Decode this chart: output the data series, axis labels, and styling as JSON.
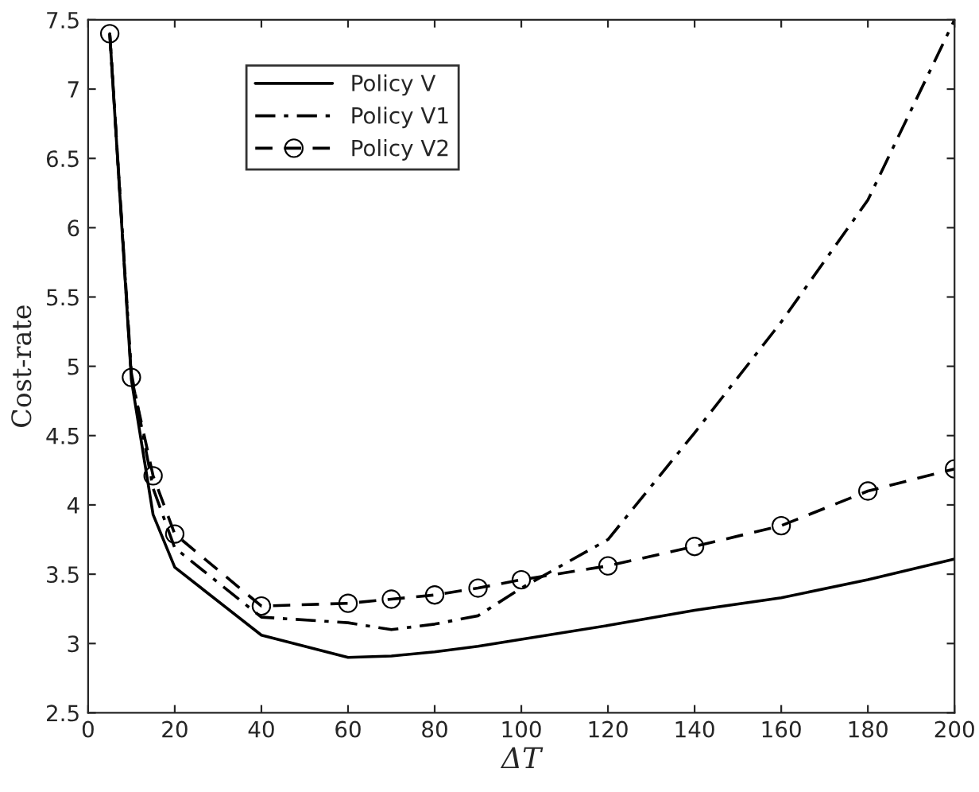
{
  "chart_data": {
    "type": "line",
    "xlabel": "ΔT",
    "ylabel": "Cost-rate",
    "x": [
      5,
      10,
      15,
      20,
      40,
      60,
      70,
      80,
      90,
      100,
      120,
      140,
      160,
      180,
      200
    ],
    "series": [
      {
        "name": "Policy V",
        "color": "#000000",
        "line_style": "solid",
        "marker": "none",
        "values": [
          7.4,
          4.9,
          3.93,
          3.55,
          3.06,
          2.9,
          2.91,
          2.94,
          2.98,
          3.03,
          3.13,
          3.24,
          3.33,
          3.46,
          3.61
        ]
      },
      {
        "name": "Policy V1",
        "color": "#000000",
        "line_style": "dashdot",
        "marker": "none",
        "values": [
          7.4,
          4.95,
          4.12,
          3.69,
          3.19,
          3.15,
          3.1,
          3.14,
          3.2,
          3.4,
          3.75,
          4.52,
          5.32,
          6.2,
          7.5
        ]
      },
      {
        "name": "Policy V2",
        "color": "#000000",
        "line_style": "dashed",
        "marker": "circle",
        "values": [
          7.4,
          4.92,
          4.21,
          3.79,
          3.27,
          3.29,
          3.32,
          3.35,
          3.4,
          3.46,
          3.56,
          3.7,
          3.85,
          4.1,
          4.26
        ]
      }
    ],
    "xlim": [
      0,
      200
    ],
    "xticks": [
      0,
      20,
      40,
      60,
      80,
      100,
      120,
      140,
      160,
      180,
      200
    ],
    "ylim": [
      2.5,
      7.5
    ],
    "yticks": [
      2.5,
      3,
      3.5,
      4,
      4.5,
      5,
      5.5,
      6,
      6.5,
      7,
      7.5
    ],
    "grid": false,
    "legend": "top left"
  }
}
